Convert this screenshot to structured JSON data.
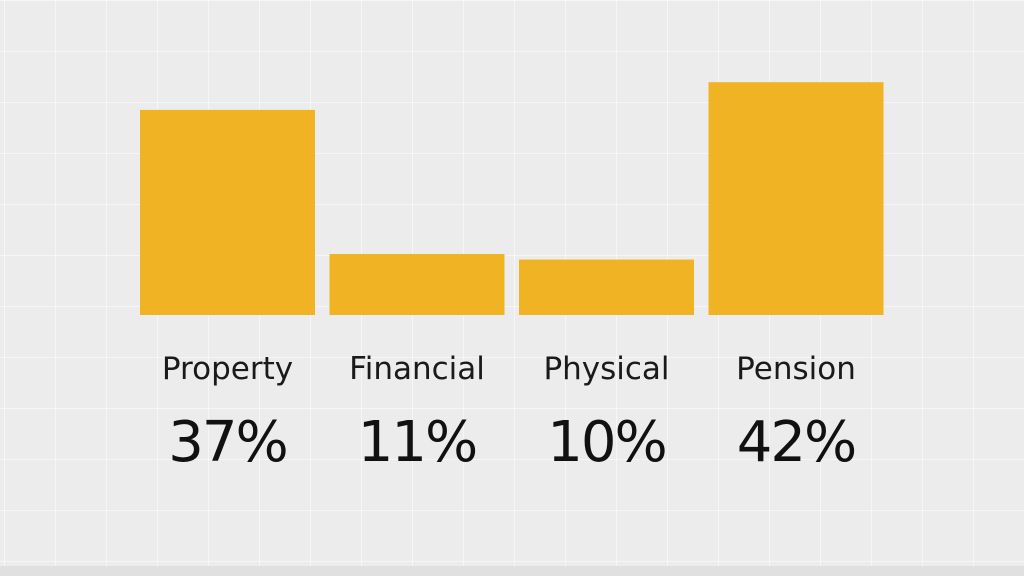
{
  "chart_data": {
    "type": "bar",
    "categories": [
      "Property",
      "Financial",
      "Physical",
      "Pension"
    ],
    "values": [
      37,
      11,
      10,
      42
    ],
    "value_labels": [
      "37%",
      "11%",
      "10%",
      "42%"
    ],
    "unit": "%",
    "ylim": [
      0,
      46
    ],
    "title": "",
    "xlabel": "",
    "ylabel": "",
    "grid": false,
    "legend": "none",
    "bar_color": "#F0B323"
  }
}
